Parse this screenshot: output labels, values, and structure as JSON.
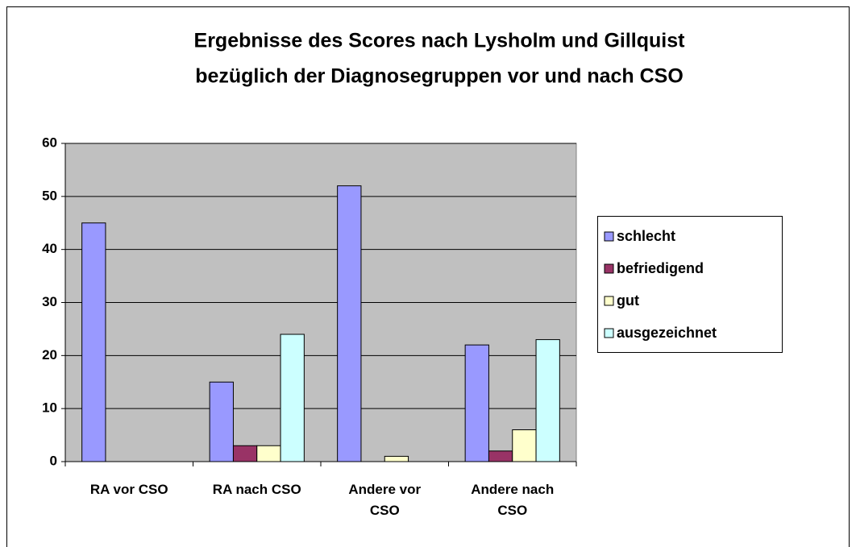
{
  "chart_data": {
    "type": "bar",
    "title": [
      "Ergebnisse des Scores nach Lysholm und Gillquist",
      "bezüglich der Diagnosegruppen vor und nach CSO"
    ],
    "categories": [
      "RA vor CSO",
      "RA nach CSO",
      "Andere vor CSO",
      "Andere nach CSO"
    ],
    "series": [
      {
        "name": "schlecht",
        "color": "#9999ff",
        "values": [
          45,
          15,
          52,
          22
        ]
      },
      {
        "name": "befriedigend",
        "color": "#993366",
        "values": [
          0,
          3,
          0,
          2
        ]
      },
      {
        "name": "gut",
        "color": "#ffffcc",
        "values": [
          0,
          3,
          1,
          6
        ]
      },
      {
        "name": "ausgezeichnet",
        "color": "#ccffff",
        "values": [
          0,
          24,
          0,
          23
        ]
      }
    ],
    "ylim": [
      0,
      60
    ],
    "yticks": [
      0,
      10,
      20,
      30,
      40,
      50,
      60
    ],
    "grid": true,
    "legend": "right",
    "plot_background": "#c0c0c0"
  }
}
